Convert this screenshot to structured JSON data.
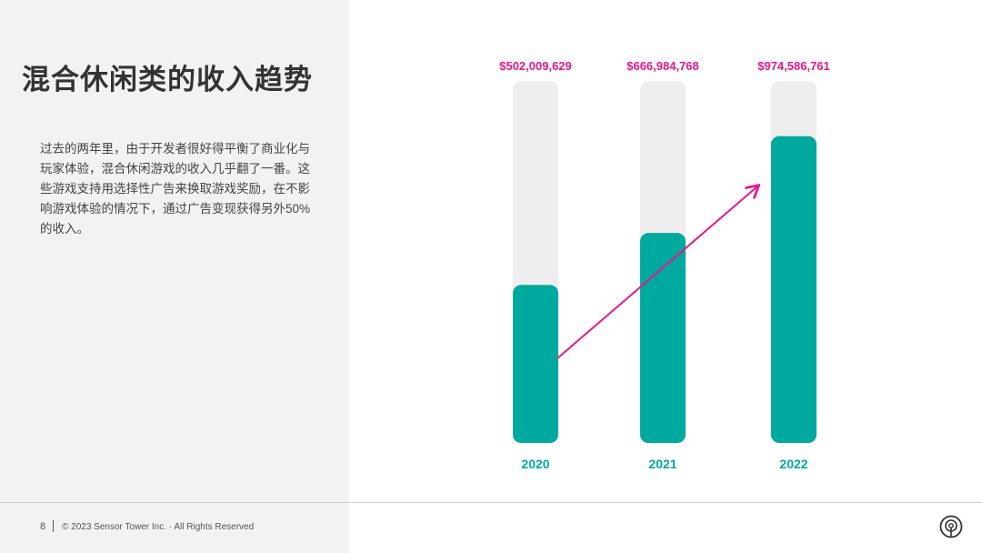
{
  "slide": {
    "title": "混合休闲类的收入趋势",
    "body": "过去的两年里，由于开发者很好得平衡了商业化与玩家体验，混合休闲游戏的收入几乎翻了一番。这些游戏支持用选择性广告来换取游戏奖励，在不影响游戏体验的情况下，通过广告变现获得另外50%的收入。",
    "page_number": "8",
    "copyright": "© 2023 Sensor Tower Inc. · All Rights Reserved"
  },
  "colors": {
    "bar_fill": "#00a99d",
    "bar_track": "#eeeeee",
    "value_label": "#e8178a",
    "year_label": "#00a99d",
    "trend_arrow": "#e8178a"
  },
  "icons": {
    "logo": "sensor-tower-logo-icon"
  },
  "chart_data": {
    "type": "bar",
    "categories": [
      "2020",
      "2021",
      "2022"
    ],
    "values": [
      502009629,
      666984768,
      974586761
    ],
    "value_labels": [
      "$502,009,629",
      "$666,984,768",
      "$974,586,761"
    ],
    "ylim": [
      0,
      1150000000
    ],
    "grid": false,
    "legend": "none",
    "trend_arrow": true
  }
}
